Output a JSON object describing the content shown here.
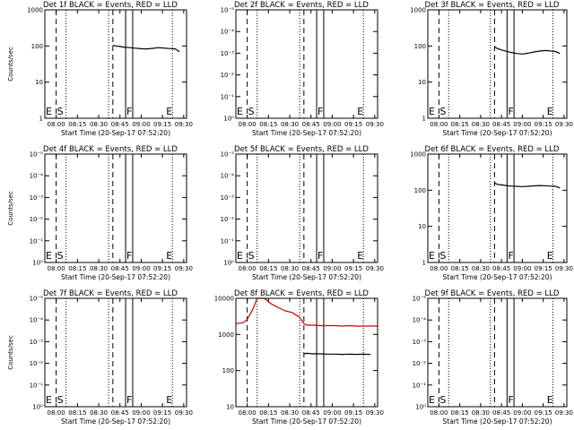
{
  "chart_data": [
    {
      "type": "line",
      "title": "Det 1f BLACK = Events, RED = LLD",
      "xlabel": "Start Time (20-Sep-17 07:52:20)",
      "ylabel": "Counts/sec",
      "yscale": "log",
      "ylim": [
        1,
        1000
      ],
      "yticks": [
        "1",
        "10",
        "100",
        "1000"
      ],
      "xticks": [
        "08:00",
        "08:15",
        "08:30",
        "08:45",
        "09:00",
        "09:15",
        "09:30"
      ],
      "xlim_min": [
        0,
        100
      ],
      "dashed_lines_min": [
        8,
        48
      ],
      "dotted_lines_min": [
        15,
        45,
        90
      ],
      "solid_lines_min": [
        57,
        62
      ],
      "markers": [
        {
          "label": "E",
          "x_min": 0
        },
        {
          "label": "S",
          "x_min": 8
        },
        {
          "label": "F",
          "x_min": 57
        },
        {
          "label": "E",
          "x_min": 85
        }
      ],
      "series": [
        {
          "color": "#000000",
          "x": [
            48,
            50,
            53,
            56,
            60,
            64,
            68,
            72,
            76,
            80,
            84,
            88,
            92,
            95
          ],
          "values": [
            105,
            100,
            97,
            93,
            90,
            87,
            84,
            83,
            86,
            90,
            88,
            85,
            83,
            70
          ]
        }
      ]
    },
    {
      "type": "line",
      "title": "Det 2f BLACK = Events, RED = LLD",
      "xlabel": "Start Time (20-Sep-17 07:52:20)",
      "ylabel": "",
      "yscale": "log",
      "ylim": [
        1,
        10000
      ],
      "yticks": [
        "10⁰",
        "10⁻¹",
        "10⁻²",
        "10⁻³",
        "10⁻⁴",
        "10⁻⁵"
      ],
      "xticks": [
        "08:00",
        "08:15",
        "08:30",
        "08:45",
        "09:00",
        "09:15",
        "09:30"
      ],
      "xlim_min": [
        0,
        100
      ],
      "dashed_lines_min": [
        8,
        48
      ],
      "dotted_lines_min": [
        15,
        45,
        90
      ],
      "solid_lines_min": [
        57,
        62
      ],
      "markers": [
        {
          "label": "E",
          "x_min": 0
        },
        {
          "label": "S",
          "x_min": 8
        },
        {
          "label": "F",
          "x_min": 57
        },
        {
          "label": "E",
          "x_min": 85
        }
      ],
      "series": []
    },
    {
      "type": "line",
      "title": "Det 3f BLACK = Events, RED = LLD",
      "xlabel": "Start Time (20-Sep-17 07:52:20)",
      "ylabel": "",
      "yscale": "log",
      "ylim": [
        1,
        1000
      ],
      "yticks": [
        "1",
        "10",
        "100",
        "1000"
      ],
      "xticks": [
        "08:00",
        "08:15",
        "08:30",
        "08:45",
        "09:00",
        "09:15",
        "09:30"
      ],
      "xlim_min": [
        0,
        100
      ],
      "dashed_lines_min": [
        8,
        48
      ],
      "dotted_lines_min": [
        15,
        45,
        90
      ],
      "solid_lines_min": [
        57,
        62
      ],
      "markers": [
        {
          "label": "E",
          "x_min": 0
        },
        {
          "label": "S",
          "x_min": 8
        },
        {
          "label": "F",
          "x_min": 57
        },
        {
          "label": "E",
          "x_min": 85
        }
      ],
      "series": [
        {
          "color": "#000000",
          "x": [
            48,
            50,
            53,
            56,
            60,
            64,
            68,
            72,
            76,
            80,
            84,
            88,
            92,
            95
          ],
          "values": [
            95,
            85,
            78,
            72,
            66,
            62,
            60,
            63,
            68,
            72,
            75,
            73,
            70,
            62
          ]
        }
      ]
    },
    {
      "type": "line",
      "title": "Det 4f BLACK = Events, RED = LLD",
      "xlabel": "Start Time (20-Sep-17 07:52:20)",
      "ylabel": "Counts/sec",
      "yscale": "log",
      "ylim": [
        1,
        10000
      ],
      "yticks": [
        "10⁰",
        "10⁻¹",
        "10⁻²",
        "10⁻³",
        "10⁻⁴",
        "10⁻⁵"
      ],
      "xticks": [
        "08:00",
        "08:15",
        "08:30",
        "08:45",
        "09:00",
        "09:15",
        "09:30"
      ],
      "xlim_min": [
        0,
        100
      ],
      "dashed_lines_min": [
        8,
        48
      ],
      "dotted_lines_min": [
        15,
        45,
        90
      ],
      "solid_lines_min": [
        57,
        62
      ],
      "markers": [
        {
          "label": "E",
          "x_min": 0
        },
        {
          "label": "S",
          "x_min": 8
        },
        {
          "label": "F",
          "x_min": 57
        },
        {
          "label": "E",
          "x_min": 85
        }
      ],
      "series": []
    },
    {
      "type": "line",
      "title": "Det 5f BLACK = Events, RED = LLD",
      "xlabel": "Start Time (20-Sep-17 07:52:20)",
      "ylabel": "",
      "yscale": "log",
      "ylim": [
        1,
        10000
      ],
      "yticks": [
        "10⁰",
        "10⁻¹",
        "10⁻²",
        "10⁻³",
        "10⁻⁴",
        "10⁻⁵"
      ],
      "xticks": [
        "08:00",
        "08:15",
        "08:30",
        "08:45",
        "09:00",
        "09:15",
        "09:30"
      ],
      "xlim_min": [
        0,
        100
      ],
      "dashed_lines_min": [
        8,
        48
      ],
      "dotted_lines_min": [
        15,
        45,
        90
      ],
      "solid_lines_min": [
        57,
        62
      ],
      "markers": [
        {
          "label": "E",
          "x_min": 0
        },
        {
          "label": "S",
          "x_min": 8
        },
        {
          "label": "F",
          "x_min": 57
        },
        {
          "label": "E",
          "x_min": 85
        }
      ],
      "series": []
    },
    {
      "type": "line",
      "title": "Det 6f BLACK = Events, RED = LLD",
      "xlabel": "Start Time (20-Sep-17 07:52:20)",
      "ylabel": "",
      "yscale": "log",
      "ylim": [
        1,
        1000
      ],
      "yticks": [
        "1",
        "10",
        "100",
        "1000"
      ],
      "xticks": [
        "08:00",
        "08:15",
        "08:30",
        "08:45",
        "09:00",
        "09:15",
        "09:30"
      ],
      "xlim_min": [
        0,
        100
      ],
      "dashed_lines_min": [
        8,
        48
      ],
      "dotted_lines_min": [
        15,
        45,
        90
      ],
      "solid_lines_min": [
        57,
        62
      ],
      "markers": [
        {
          "label": "E",
          "x_min": 0
        },
        {
          "label": "S",
          "x_min": 8
        },
        {
          "label": "F",
          "x_min": 57
        },
        {
          "label": "E",
          "x_min": 85
        }
      ],
      "series": [
        {
          "color": "#000000",
          "x": [
            48,
            50,
            53,
            56,
            60,
            64,
            68,
            72,
            76,
            80,
            84,
            88,
            92,
            95
          ],
          "values": [
            160,
            145,
            140,
            135,
            130,
            128,
            126,
            128,
            132,
            135,
            133,
            130,
            128,
            115
          ]
        }
      ]
    },
    {
      "type": "line",
      "title": "Det 7f BLACK = Events, RED = LLD",
      "xlabel": "Start Time (20-Sep-17 07:52:20)",
      "ylabel": "Counts/sec",
      "yscale": "log",
      "ylim": [
        1,
        10000
      ],
      "yticks": [
        "10⁰",
        "10⁻¹",
        "10⁻²",
        "10⁻³",
        "10⁻⁴",
        "10⁻⁵"
      ],
      "xticks": [
        "08:00",
        "08:15",
        "08:30",
        "08:45",
        "09:00",
        "09:15",
        "09:30"
      ],
      "xlim_min": [
        0,
        100
      ],
      "dashed_lines_min": [
        8,
        48
      ],
      "dotted_lines_min": [
        15,
        45,
        90
      ],
      "solid_lines_min": [
        57,
        62
      ],
      "markers": [
        {
          "label": "E",
          "x_min": 0
        },
        {
          "label": "S",
          "x_min": 8
        },
        {
          "label": "F",
          "x_min": 57
        },
        {
          "label": "E",
          "x_min": 85
        }
      ],
      "series": []
    },
    {
      "type": "line",
      "title": "Det 8f BLACK = Events, RED = LLD",
      "xlabel": "Start Time (20-Sep-17 07:52:20)",
      "ylabel": "",
      "yscale": "log",
      "ylim": [
        10,
        10000
      ],
      "yticks": [
        "10",
        "100",
        "1000",
        "10000"
      ],
      "xticks": [
        "08:00",
        "08:15",
        "08:30",
        "08:45",
        "09:00",
        "09:15",
        "09:30"
      ],
      "xlim_min": [
        0,
        100
      ],
      "dashed_lines_min": [
        8,
        48
      ],
      "dotted_lines_min": [
        15,
        45,
        90
      ],
      "solid_lines_min": [
        57,
        62
      ],
      "markers": [],
      "series": [
        {
          "color": "#d00000",
          "x": [
            -8,
            -5,
            0,
            5,
            8,
            12,
            15,
            20,
            25,
            30,
            35,
            40,
            45,
            48,
            50,
            55,
            60,
            65,
            70,
            75,
            80,
            85,
            90,
            95,
            100
          ],
          "values": [
            2000,
            2000,
            2000,
            2100,
            2600,
            5000,
            10000,
            10000,
            7000,
            5500,
            4500,
            4000,
            3000,
            2000,
            1800,
            1800,
            1750,
            1750,
            1750,
            1700,
            1750,
            1700,
            1700,
            1700,
            1700
          ]
        },
        {
          "color": "#000000",
          "x": [
            48,
            50,
            55,
            60,
            65,
            70,
            75,
            80,
            85,
            90,
            95
          ],
          "values": [
            290,
            300,
            290,
            290,
            285,
            285,
            280,
            285,
            280,
            285,
            280
          ]
        }
      ]
    },
    {
      "type": "line",
      "title": "Det 9f BLACK = Events, RED = LLD",
      "xlabel": "Start Time (20-Sep-17 07:52:20)",
      "ylabel": "",
      "yscale": "log",
      "ylim": [
        1,
        10000
      ],
      "yticks": [
        "10⁰",
        "10⁻¹",
        "10⁻²",
        "10⁻³",
        "10⁻⁴",
        "10⁻⁵"
      ],
      "xticks": [
        "08:00",
        "08:15",
        "08:30",
        "08:45",
        "09:00",
        "09:15",
        "09:30"
      ],
      "xlim_min": [
        0,
        100
      ],
      "dashed_lines_min": [
        8,
        48
      ],
      "dotted_lines_min": [
        15,
        45,
        90
      ],
      "solid_lines_min": [
        57,
        62
      ],
      "markers": [
        {
          "label": "E",
          "x_min": 0
        },
        {
          "label": "S",
          "x_min": 8
        },
        {
          "label": "F",
          "x_min": 57
        },
        {
          "label": "E",
          "x_min": 85
        }
      ],
      "series": []
    }
  ]
}
